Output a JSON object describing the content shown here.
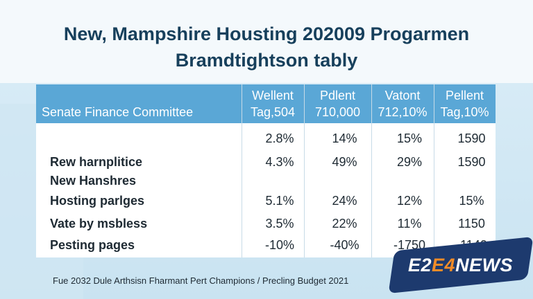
{
  "title_line1": "New, Mampshire Housting 202009 Progarmen",
  "title_line2": "Bramdtightson tably",
  "committee_label": "Senate Finance Committee",
  "columns": [
    {
      "name": "Wellent",
      "sub": "Tag,504"
    },
    {
      "name": "Pdlent",
      "sub": "710,000"
    },
    {
      "name": "Vatont",
      "sub": "712,10%"
    },
    {
      "name": "Pellent",
      "sub": "Tag,10%"
    }
  ],
  "rows": [
    {
      "label": "",
      "values": [
        "2.8%",
        "14%",
        "15%",
        "1590"
      ]
    },
    {
      "label": "Rew harnplitice",
      "values": [
        "4.3%",
        "49%",
        "29%",
        "1590"
      ]
    },
    {
      "label": "New Hanshres",
      "values": [
        "",
        "",
        "",
        ""
      ]
    },
    {
      "label": "Hosting parlges",
      "values": [
        "5.1%",
        "24%",
        "12%",
        "15%"
      ]
    },
    {
      "label": "Vate by msbless",
      "values": [
        "3.5%",
        "22%",
        "11%",
        "1150"
      ]
    },
    {
      "label": "Pesting pages",
      "values": [
        "-10%",
        "-40%",
        "-1750",
        "-1140"
      ]
    }
  ],
  "footer": "Fue 2032 Dule Arthsisn Fharmant Pert Champions / Precling Budget 2021",
  "logo": {
    "part1": "E2",
    "part2": "E4",
    "part3": "NEWS"
  },
  "colors": {
    "header": "#5aa7d6",
    "title": "#17405c",
    "logo_bg": "#1d3a6e",
    "logo_accent": "#f28c28"
  }
}
